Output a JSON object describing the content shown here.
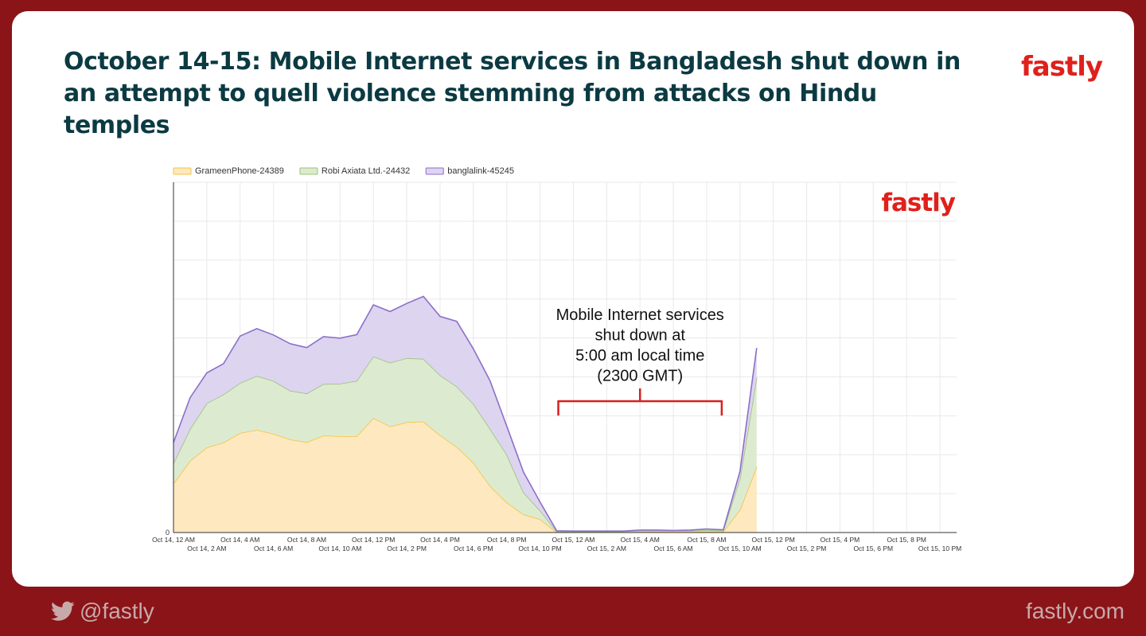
{
  "header": {
    "title": "October 14-15: Mobile Internet services in Bangladesh shut down in an attempt to quell violence stemming from attacks on Hindu temples",
    "brand": "fastly"
  },
  "footer": {
    "handle": "@fastly",
    "site": "fastly.com",
    "icon": "twitter-bird-icon"
  },
  "colors": {
    "background": "#8a1418",
    "title": "#0b3a42",
    "brand": "#e0201b",
    "annotation": "#d81f1f"
  },
  "chart_data": {
    "type": "area",
    "stacked": true,
    "legend_position": "top-left",
    "grid": true,
    "watermark": "fastly",
    "y_tick_labels": [
      "0"
    ],
    "x_tick_labels_top": [
      "Oct 14, 12 AM",
      "Oct 14, 4 AM",
      "Oct 14, 8 AM",
      "Oct 14, 12 PM",
      "Oct 14, 4 PM",
      "Oct 14, 8 PM",
      "Oct 15, 12 AM",
      "Oct 15, 4 AM",
      "Oct 15, 8 AM",
      "Oct 15, 12 PM",
      "Oct 15, 4 PM",
      "Oct 15, 8 PM"
    ],
    "x_tick_labels_bottom": [
      "Oct 14, 2 AM",
      "Oct 14, 6 AM",
      "Oct 14, 10 AM",
      "Oct 14, 2 PM",
      "Oct 14, 6 PM",
      "Oct 14, 10 PM",
      "Oct 15, 2 AM",
      "Oct 15, 6 AM",
      "Oct 15, 10 AM",
      "Oct 15, 2 PM",
      "Oct 15, 6 PM",
      "Oct 15, 10 PM"
    ],
    "x_range_hours": [
      0,
      47
    ],
    "ylim": [
      0,
      100
    ],
    "hours": [
      0,
      1,
      2,
      3,
      4,
      5,
      6,
      7,
      8,
      9,
      10,
      11,
      12,
      13,
      14,
      15,
      16,
      17,
      18,
      19,
      20,
      21,
      22,
      23,
      24,
      25,
      26,
      27,
      28,
      29,
      30,
      31,
      32,
      33,
      34,
      35
    ],
    "series": [
      {
        "name": "GrameenPhone-24389",
        "color": "#f5c242",
        "fill": "#fde8bf",
        "values": [
          14,
          20.5,
          24.3,
          25.7,
          28.4,
          29.3,
          28.2,
          26.6,
          25.8,
          27.7,
          27.5,
          27.5,
          32.7,
          30.3,
          31.5,
          31.7,
          27.8,
          24.5,
          19.9,
          13.3,
          8.6,
          5.2,
          3.8,
          0.1,
          0.1,
          0.1,
          0.1,
          0.1,
          0.2,
          0.2,
          0.2,
          0.2,
          0.3,
          0.3,
          6.5,
          18.8
        ]
      },
      {
        "name": "Robi Axiata Ltd.-24432",
        "color": "#9bc27b",
        "fill": "#dcebd0",
        "values": [
          5.8,
          9.1,
          12.6,
          13.7,
          14.3,
          15.4,
          15.1,
          13.9,
          13.9,
          14.7,
          15,
          15.8,
          17.6,
          18.2,
          18.3,
          17.9,
          17.1,
          17.2,
          16.8,
          16.3,
          13.7,
          6.3,
          2.5,
          0.2,
          0.2,
          0.2,
          0.2,
          0.2,
          0.3,
          0.3,
          0.3,
          0.3,
          0.4,
          0.3,
          8.9,
          25.4
        ]
      },
      {
        "name": "banglalink-45245",
        "color": "#8d6fc7",
        "fill": "#ddd4f0",
        "values": [
          5.9,
          8.9,
          8.7,
          8.8,
          13.4,
          13.5,
          13.1,
          13.4,
          13.1,
          13.5,
          13,
          13.2,
          14.7,
          14.6,
          15.6,
          17.8,
          16.8,
          18.6,
          15.7,
          13.7,
          8.1,
          5.8,
          2.4,
          0.2,
          0.1,
          0.1,
          0.1,
          0.1,
          0.2,
          0.2,
          0.1,
          0.2,
          0.3,
          0.2,
          2,
          8.5
        ]
      }
    ],
    "annotation": {
      "text_lines": [
        "Mobile Internet services",
        "shut down at",
        "5:00 am local time",
        "(2300 GMT)"
      ],
      "bracket_start_hour": 23,
      "bracket_end_hour": 33
    }
  }
}
